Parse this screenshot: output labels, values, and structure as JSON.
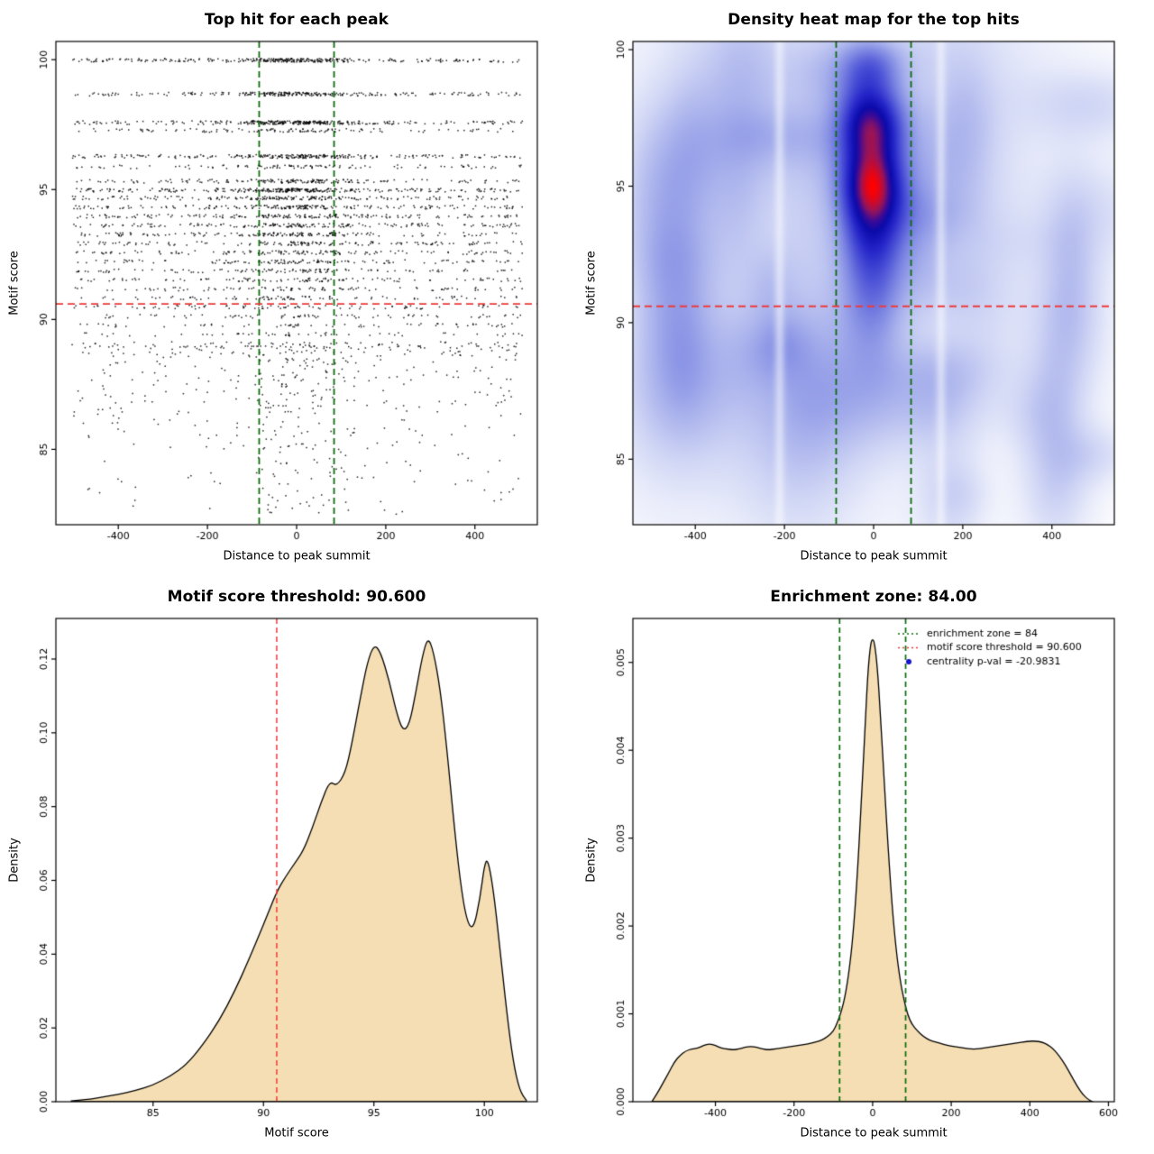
{
  "page": {
    "background": "#ffffff"
  },
  "chart_data": [
    {
      "id": "top-hit-scatter",
      "type": "scatter",
      "title": "Top hit for each peak",
      "xlabel": "Distance to peak summit",
      "ylabel": "Motif score",
      "xlim": [
        -540,
        540
      ],
      "ylim": [
        82.1,
        100.7
      ],
      "xtick_values": [
        -400,
        -200,
        0,
        200,
        400
      ],
      "xtick_labels": [
        "-400",
        "-200",
        "0",
        "200",
        "400"
      ],
      "ytick_values": [
        85,
        90,
        95,
        100
      ],
      "ytick_labels": [
        "85",
        "90",
        "95",
        "100"
      ],
      "point_color": "#000000",
      "vlines": [
        {
          "x": -84,
          "color": "#0c6b0c",
          "dash": [
            7,
            4
          ],
          "width": 1.8
        },
        {
          "x": 84,
          "color": "#0c6b0c",
          "dash": [
            7,
            4
          ],
          "width": 1.8
        }
      ],
      "hlines": [
        {
          "y": 90.6,
          "color": "#ee3a3a",
          "dash": [
            8,
            5
          ],
          "width": 1.8
        }
      ],
      "seed": 20240601,
      "score_bands": [
        [
          100,
          320,
          0.45
        ],
        [
          98.7,
          260,
          0.45
        ],
        [
          97.6,
          330,
          0.5
        ],
        [
          97.3,
          120,
          0.4
        ],
        [
          96.3,
          260,
          0.45
        ],
        [
          95.9,
          110,
          0.4
        ],
        [
          95.35,
          180,
          0.4
        ],
        [
          95.0,
          300,
          0.45
        ],
        [
          94.7,
          200,
          0.4
        ],
        [
          94.35,
          200,
          0.38
        ],
        [
          94.0,
          190,
          0.36
        ],
        [
          93.65,
          180,
          0.34
        ],
        [
          93.3,
          170,
          0.32
        ],
        [
          92.95,
          150,
          0.3
        ],
        [
          92.6,
          140,
          0.3
        ],
        [
          92.25,
          130,
          0.28
        ],
        [
          91.9,
          120,
          0.27
        ],
        [
          91.55,
          110,
          0.26
        ],
        [
          91.2,
          100,
          0.25
        ],
        [
          90.85,
          90,
          0.24
        ],
        [
          90.5,
          85,
          0.22
        ],
        [
          90.15,
          75,
          0.2
        ],
        [
          89.8,
          65,
          0.2
        ],
        [
          89.45,
          55,
          0.18
        ],
        [
          89.1,
          50,
          0.18
        ]
      ],
      "low_tail": {
        "count": 520,
        "score_min": 82.5,
        "score_max": 89.0
      },
      "x_central_sigma": 70,
      "x_uniform_range": [
        -505,
        505
      ]
    },
    {
      "id": "top-hit-density-heatmap",
      "type": "heatmap",
      "title": "Density heat map for the top hits",
      "xlabel": "Distance to peak summit",
      "ylabel": "Motif score",
      "xlim": [
        -540,
        540
      ],
      "ylim": [
        82.6,
        100.3
      ],
      "xtick_values": [
        -400,
        -200,
        0,
        200,
        400
      ],
      "xtick_labels": [
        "-400",
        "-200",
        "0",
        "200",
        "400"
      ],
      "ytick_values": [
        85,
        90,
        95,
        100
      ],
      "ytick_labels": [
        "85",
        "90",
        "95",
        "100"
      ],
      "vlines": [
        {
          "x": -84,
          "color": "#0c6b0c",
          "dash": [
            7,
            4
          ],
          "width": 1.8
        },
        {
          "x": 84,
          "color": "#0c6b0c",
          "dash": [
            7,
            4
          ],
          "width": 1.8
        }
      ],
      "hlines": [
        {
          "y": 90.6,
          "color": "#ee3a3a",
          "dash": [
            8,
            5
          ],
          "width": 1.8
        }
      ],
      "seed": 777,
      "center_x_sigma": 50,
      "score_profile": [
        [
          97.35,
          1.0,
          1.0
        ],
        [
          95.05,
          0.95,
          0.97
        ],
        [
          93.4,
          1.15,
          0.6
        ],
        [
          91.5,
          1.6,
          0.32
        ],
        [
          99.5,
          0.75,
          0.5
        ],
        [
          89.3,
          2.2,
          0.16
        ]
      ],
      "background_blob_count": 60,
      "haze_blob_count": 7,
      "white_streaks": [
        -212,
        152
      ],
      "colormap": [
        [
          0.0,
          "#ffffff"
        ],
        [
          0.05,
          "#f8f9fd"
        ],
        [
          0.12,
          "#e8ebfa"
        ],
        [
          0.22,
          "#cdd3f4"
        ],
        [
          0.34,
          "#a8b1ec"
        ],
        [
          0.46,
          "#7c86e2"
        ],
        [
          0.58,
          "#4e54d7"
        ],
        [
          0.7,
          "#2424c8"
        ],
        [
          0.8,
          "#0a0aaa"
        ],
        [
          0.86,
          "#3c0a96"
        ],
        [
          0.92,
          "#96145a"
        ],
        [
          1.0,
          "#ff0000"
        ]
      ]
    },
    {
      "id": "motif-score-density",
      "type": "area",
      "title": "Motif score threshold: 90.600",
      "xlabel": "Motif score",
      "ylabel": "Density",
      "xlim": [
        80.6,
        102.4
      ],
      "ylim": [
        0,
        0.131
      ],
      "xtick_values": [
        85,
        90,
        95,
        100
      ],
      "xtick_labels": [
        "85",
        "90",
        "95",
        "100"
      ],
      "ytick_values": [
        0,
        0.02,
        0.04,
        0.06,
        0.08,
        0.1,
        0.12
      ],
      "ytick_labels": [
        "0.00",
        "0.02",
        "0.04",
        "0.06",
        "0.08",
        "0.10",
        "0.12"
      ],
      "fill": "#f5deb3",
      "stroke": "#000000",
      "vlines": [
        {
          "x": 90.6,
          "color": "#ee3a3a",
          "dash": [
            6,
            4
          ],
          "width": 1.5
        }
      ],
      "points": [
        [
          81.3,
          0.0002
        ],
        [
          82,
          0.0006
        ],
        [
          82.7,
          0.0012
        ],
        [
          83.4,
          0.002
        ],
        [
          84.2,
          0.003
        ],
        [
          85,
          0.0045
        ],
        [
          85.8,
          0.007
        ],
        [
          86.5,
          0.01
        ],
        [
          87.2,
          0.015
        ],
        [
          88,
          0.022
        ],
        [
          88.7,
          0.03
        ],
        [
          89.3,
          0.038
        ],
        [
          90,
          0.048
        ],
        [
          90.6,
          0.057
        ],
        [
          91,
          0.061
        ],
        [
          91.4,
          0.0645
        ],
        [
          91.8,
          0.068
        ],
        [
          92.2,
          0.074
        ],
        [
          92.6,
          0.081
        ],
        [
          93,
          0.087
        ],
        [
          93.3,
          0.0855
        ],
        [
          93.7,
          0.089
        ],
        [
          94,
          0.097
        ],
        [
          94.4,
          0.11
        ],
        [
          94.7,
          0.119
        ],
        [
          95,
          0.124
        ],
        [
          95.3,
          0.122
        ],
        [
          95.7,
          0.114
        ],
        [
          96,
          0.106
        ],
        [
          96.3,
          0.1005
        ],
        [
          96.6,
          0.102
        ],
        [
          96.9,
          0.111
        ],
        [
          97.2,
          0.121
        ],
        [
          97.45,
          0.126
        ],
        [
          97.7,
          0.122
        ],
        [
          98,
          0.112
        ],
        [
          98.3,
          0.096
        ],
        [
          98.6,
          0.077
        ],
        [
          98.9,
          0.06
        ],
        [
          99.2,
          0.049
        ],
        [
          99.5,
          0.0465
        ],
        [
          99.8,
          0.055
        ],
        [
          100,
          0.064
        ],
        [
          100.15,
          0.066
        ],
        [
          100.4,
          0.058
        ],
        [
          100.7,
          0.042
        ],
        [
          101,
          0.025
        ],
        [
          101.3,
          0.011
        ],
        [
          101.6,
          0.003
        ],
        [
          101.9,
          0.0004
        ]
      ]
    },
    {
      "id": "distance-density",
      "type": "area",
      "title": "Enrichment zone: 84.00",
      "xlabel": "Distance to peak summit",
      "ylabel": "Density",
      "xlim": [
        -610,
        615
      ],
      "ylim": [
        0,
        0.0055
      ],
      "xtick_values": [
        -400,
        -200,
        0,
        200,
        400,
        600
      ],
      "xtick_labels": [
        "-400",
        "-200",
        "0",
        "200",
        "400",
        "600"
      ],
      "ytick_values": [
        0,
        0.001,
        0.002,
        0.003,
        0.004,
        0.005
      ],
      "ytick_labels": [
        "0.000",
        "0.001",
        "0.002",
        "0.003",
        "0.004",
        "0.005"
      ],
      "fill": "#f5deb3",
      "stroke": "#000000",
      "vlines": [
        {
          "x": -84,
          "color": "#0c6b0c",
          "dash": [
            6,
            4
          ],
          "width": 1.7
        },
        {
          "x": 84,
          "color": "#0c6b0c",
          "dash": [
            6,
            4
          ],
          "width": 1.7
        }
      ],
      "legend": [
        {
          "type": "line",
          "color": "#0c6b0c",
          "label": "enrichment zone = 84"
        },
        {
          "type": "line",
          "color": "#ee3a3a",
          "label": "motif score threshold = 90.600"
        },
        {
          "type": "point",
          "color": "#1414cc",
          "label": "centrality p-val = -20.9831"
        }
      ],
      "points": [
        [
          -562,
          0
        ],
        [
          -550,
          8e-05
        ],
        [
          -535,
          0.0002
        ],
        [
          -520,
          0.00032
        ],
        [
          -505,
          0.00045
        ],
        [
          -490,
          0.00053
        ],
        [
          -475,
          0.00058
        ],
        [
          -460,
          0.0006
        ],
        [
          -445,
          0.00061
        ],
        [
          -430,
          0.00064
        ],
        [
          -415,
          0.00066
        ],
        [
          -400,
          0.00064
        ],
        [
          -385,
          0.00061
        ],
        [
          -370,
          0.0006
        ],
        [
          -355,
          0.00059
        ],
        [
          -340,
          0.0006
        ],
        [
          -325,
          0.00062
        ],
        [
          -310,
          0.00063
        ],
        [
          -295,
          0.00062
        ],
        [
          -280,
          0.0006
        ],
        [
          -265,
          0.00059
        ],
        [
          -250,
          0.0006
        ],
        [
          -235,
          0.00061
        ],
        [
          -220,
          0.00062
        ],
        [
          -205,
          0.00063
        ],
        [
          -190,
          0.00064
        ],
        [
          -175,
          0.00065
        ],
        [
          -160,
          0.00066
        ],
        [
          -145,
          0.00068
        ],
        [
          -130,
          0.0007
        ],
        [
          -115,
          0.00074
        ],
        [
          -100,
          0.0008
        ],
        [
          -90,
          0.0009
        ],
        [
          -80,
          0.00102
        ],
        [
          -70,
          0.0012
        ],
        [
          -60,
          0.00148
        ],
        [
          -50,
          0.00188
        ],
        [
          -40,
          0.0025
        ],
        [
          -30,
          0.0033
        ],
        [
          -20,
          0.0042
        ],
        [
          -12,
          0.0049
        ],
        [
          -5,
          0.00522
        ],
        [
          0,
          0.00527
        ],
        [
          5,
          0.00522
        ],
        [
          12,
          0.00495
        ],
        [
          20,
          0.0044
        ],
        [
          30,
          0.0036
        ],
        [
          40,
          0.00285
        ],
        [
          50,
          0.0022
        ],
        [
          60,
          0.00172
        ],
        [
          70,
          0.00138
        ],
        [
          80,
          0.00115
        ],
        [
          90,
          0.00098
        ],
        [
          100,
          0.00088
        ],
        [
          115,
          0.0008
        ],
        [
          130,
          0.00074
        ],
        [
          145,
          0.0007
        ],
        [
          160,
          0.00068
        ],
        [
          175,
          0.00066
        ],
        [
          190,
          0.00064
        ],
        [
          205,
          0.00063
        ],
        [
          220,
          0.00062
        ],
        [
          235,
          0.00061
        ],
        [
          250,
          0.0006
        ],
        [
          265,
          0.0006
        ],
        [
          280,
          0.00061
        ],
        [
          295,
          0.00062
        ],
        [
          310,
          0.00063
        ],
        [
          325,
          0.00064
        ],
        [
          340,
          0.00065
        ],
        [
          355,
          0.00066
        ],
        [
          370,
          0.00067
        ],
        [
          385,
          0.00068
        ],
        [
          400,
          0.00069
        ],
        [
          415,
          0.00069
        ],
        [
          430,
          0.00068
        ],
        [
          445,
          0.00065
        ],
        [
          460,
          0.0006
        ],
        [
          475,
          0.00052
        ],
        [
          490,
          0.00042
        ],
        [
          505,
          0.0003
        ],
        [
          520,
          0.00018
        ],
        [
          535,
          8e-05
        ],
        [
          550,
          2e-05
        ],
        [
          560,
          0
        ]
      ]
    }
  ]
}
